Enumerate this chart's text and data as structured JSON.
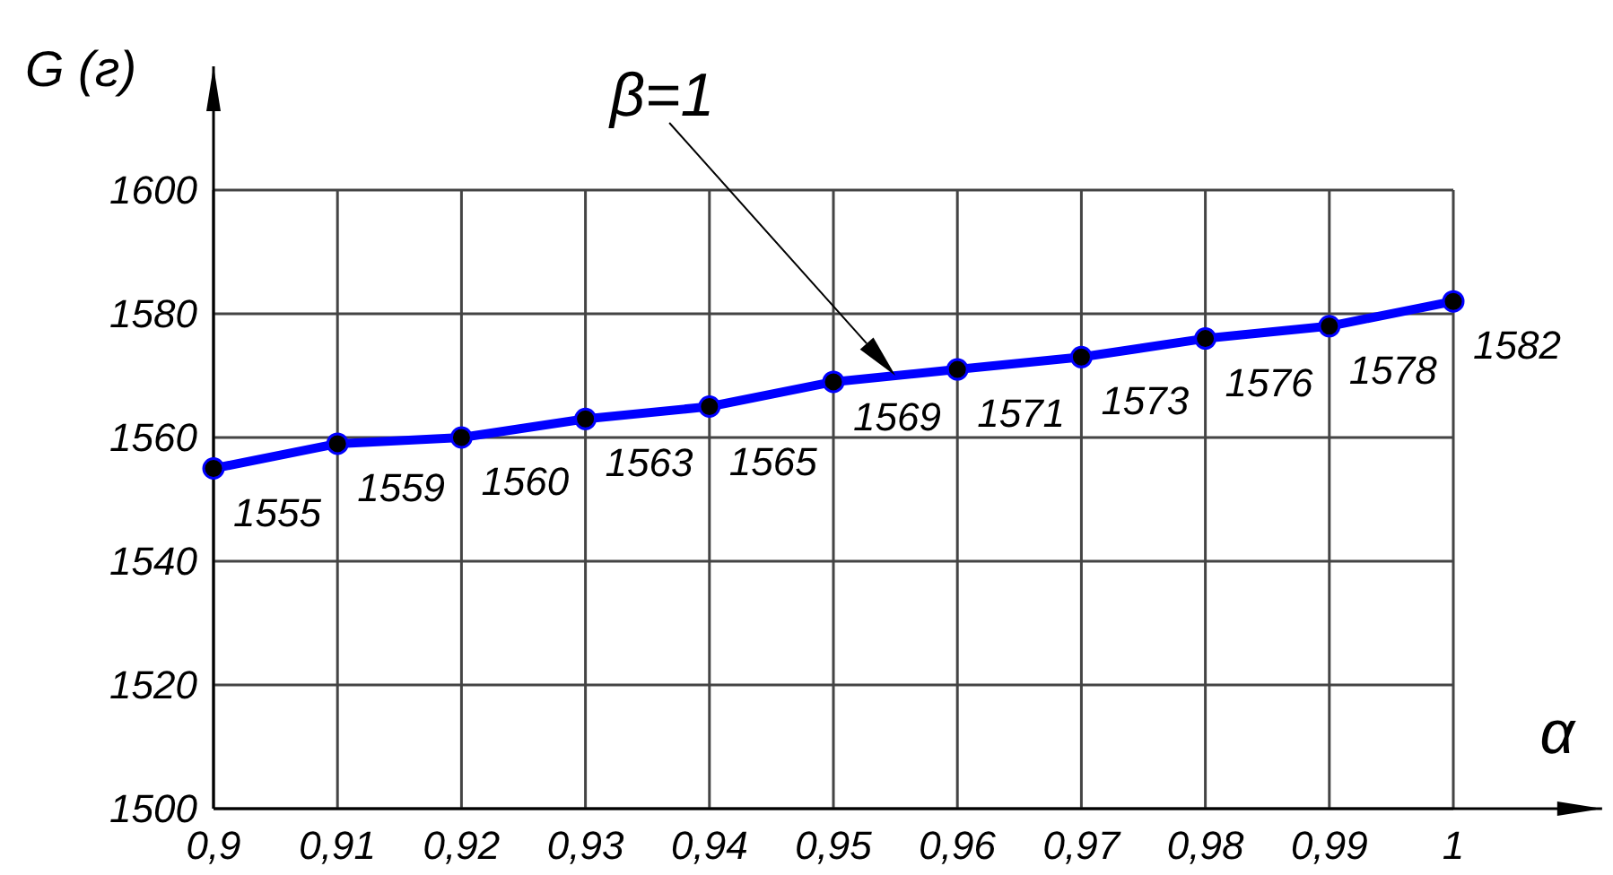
{
  "chart_data": {
    "type": "line",
    "xlabel": "α",
    "ylabel": "G (г)",
    "x": [
      0.9,
      0.91,
      0.92,
      0.93,
      0.94,
      0.95,
      0.96,
      0.97,
      0.98,
      0.99,
      1
    ],
    "series": [
      {
        "color": "#0000ff",
        "values": [
          1555,
          1559,
          1560,
          1563,
          1565,
          1569,
          1571,
          1573,
          1576,
          1578,
          1582
        ]
      }
    ],
    "xlim": [
      0.9,
      1.012
    ],
    "ylim": [
      1500,
      1620
    ],
    "xticks": [
      {
        "value": 0.9,
        "label": "0,9"
      },
      {
        "value": 0.91,
        "label": "0,91"
      },
      {
        "value": 0.92,
        "label": "0,92"
      },
      {
        "value": 0.93,
        "label": "0,93"
      },
      {
        "value": 0.94,
        "label": "0,94"
      },
      {
        "value": 0.95,
        "label": "0,95"
      },
      {
        "value": 0.96,
        "label": "0,96"
      },
      {
        "value": 0.97,
        "label": "0,97"
      },
      {
        "value": 0.98,
        "label": "0,98"
      },
      {
        "value": 0.99,
        "label": "0,99"
      },
      1
    ],
    "yticks": [
      1500,
      1520,
      1540,
      1560,
      1580,
      1600
    ],
    "grid": true,
    "marker": "circle",
    "line_style": "solid",
    "data_labels": true,
    "annotations": [
      "β=1"
    ]
  }
}
